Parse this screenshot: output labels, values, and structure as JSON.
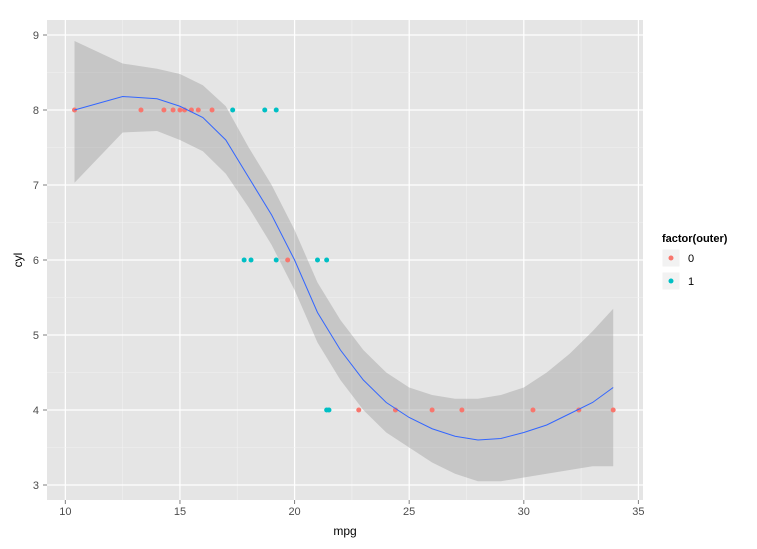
{
  "chart_data": {
    "type": "scatter",
    "xlabel": "mpg",
    "ylabel": "cyl",
    "xlim": [
      9.2,
      35.2
    ],
    "ylim": [
      2.8,
      9.2
    ],
    "xticks": [
      10,
      15,
      20,
      25,
      30,
      35
    ],
    "yticks": [
      3,
      4,
      5,
      6,
      7,
      8,
      9
    ],
    "grid": true,
    "legend_placement": "right",
    "legend": {
      "title": "factor(outer)",
      "entries": [
        {
          "label": "0",
          "color": "#F8766D"
        },
        {
          "label": "1",
          "color": "#00BFC4"
        }
      ]
    },
    "points": [
      {
        "x": 10.4,
        "y": 8,
        "g": "0"
      },
      {
        "x": 13.3,
        "y": 8,
        "g": "0"
      },
      {
        "x": 14.3,
        "y": 8,
        "g": "0"
      },
      {
        "x": 14.7,
        "y": 8,
        "g": "0"
      },
      {
        "x": 15.0,
        "y": 8,
        "g": "0"
      },
      {
        "x": 15.2,
        "y": 8,
        "g": "0"
      },
      {
        "x": 15.5,
        "y": 8,
        "g": "0"
      },
      {
        "x": 15.8,
        "y": 8,
        "g": "0"
      },
      {
        "x": 16.4,
        "y": 8,
        "g": "0"
      },
      {
        "x": 17.3,
        "y": 8,
        "g": "1"
      },
      {
        "x": 18.7,
        "y": 8,
        "g": "1"
      },
      {
        "x": 19.2,
        "y": 8,
        "g": "1"
      },
      {
        "x": 17.8,
        "y": 6,
        "g": "1"
      },
      {
        "x": 18.1,
        "y": 6,
        "g": "1"
      },
      {
        "x": 19.2,
        "y": 6,
        "g": "1"
      },
      {
        "x": 19.7,
        "y": 6,
        "g": "0"
      },
      {
        "x": 21.0,
        "y": 6,
        "g": "1"
      },
      {
        "x": 21.4,
        "y": 6,
        "g": "1"
      },
      {
        "x": 21.4,
        "y": 4,
        "g": "1"
      },
      {
        "x": 21.5,
        "y": 4,
        "g": "1"
      },
      {
        "x": 22.8,
        "y": 4,
        "g": "0"
      },
      {
        "x": 24.4,
        "y": 4,
        "g": "0"
      },
      {
        "x": 26.0,
        "y": 4,
        "g": "0"
      },
      {
        "x": 27.3,
        "y": 4,
        "g": "0"
      },
      {
        "x": 30.4,
        "y": 4,
        "g": "0"
      },
      {
        "x": 32.4,
        "y": 4,
        "g": "0"
      },
      {
        "x": 33.9,
        "y": 4,
        "g": "0"
      }
    ],
    "smooth": {
      "color": "#3366FF",
      "band_color": "#999999",
      "x": [
        10.4,
        12.5,
        14,
        15,
        16,
        17,
        18,
        19,
        20,
        21,
        22,
        23,
        24,
        25,
        26,
        27,
        28,
        29,
        30,
        31,
        32,
        33,
        33.9
      ],
      "y": [
        8.0,
        8.18,
        8.15,
        8.05,
        7.9,
        7.6,
        7.1,
        6.6,
        6.0,
        5.3,
        4.8,
        4.4,
        4.1,
        3.9,
        3.75,
        3.65,
        3.6,
        3.62,
        3.7,
        3.8,
        3.95,
        4.1,
        4.3
      ],
      "lower": [
        7.03,
        7.7,
        7.72,
        7.6,
        7.45,
        7.15,
        6.7,
        6.2,
        5.6,
        4.9,
        4.4,
        4.0,
        3.7,
        3.5,
        3.3,
        3.15,
        3.05,
        3.05,
        3.1,
        3.15,
        3.2,
        3.25,
        3.25
      ],
      "upper": [
        8.92,
        8.62,
        8.55,
        8.48,
        8.33,
        8.05,
        7.5,
        7.0,
        6.4,
        5.7,
        5.2,
        4.8,
        4.5,
        4.3,
        4.2,
        4.15,
        4.15,
        4.2,
        4.3,
        4.5,
        4.75,
        5.05,
        5.35
      ]
    }
  }
}
